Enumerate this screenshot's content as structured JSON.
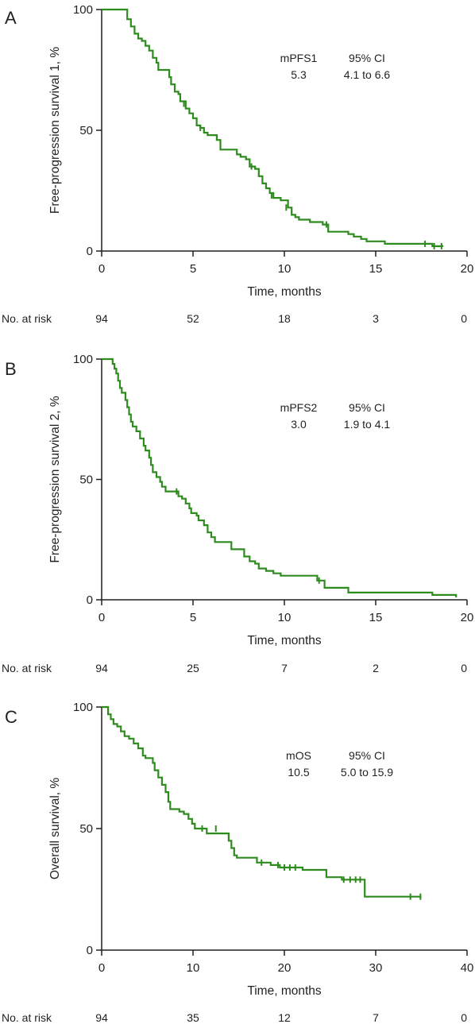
{
  "chart_data": [
    {
      "type": "line",
      "panel": "A",
      "xlabel": "Time, months",
      "ylabel": "Free-progression survival 1, %",
      "xlim": [
        0,
        20
      ],
      "ylim": [
        0,
        100
      ],
      "xticks": [
        0,
        5,
        10,
        15,
        20
      ],
      "yticks": [
        0,
        50,
        100
      ],
      "line_color": "#2e8b1e",
      "annotation": {
        "rows": [
          [
            "mPFS1",
            "95% CI"
          ],
          [
            "5.3",
            "4.1 to 6.6"
          ]
        ]
      },
      "risk_table": {
        "label": "No. at risk",
        "times": [
          0,
          5,
          10,
          15,
          20
        ],
        "counts": [
          "94",
          "52",
          "18",
          "3",
          "0"
        ]
      },
      "series": [
        {
          "steps": [
            [
              0,
              100
            ],
            [
              1.2,
              100
            ],
            [
              1.4,
              96
            ],
            [
              1.6,
              93
            ],
            [
              1.8,
              90
            ],
            [
              2.0,
              88
            ],
            [
              2.2,
              87
            ],
            [
              2.4,
              85
            ],
            [
              2.6,
              83
            ],
            [
              2.8,
              80
            ],
            [
              3.0,
              78
            ],
            [
              3.1,
              75
            ],
            [
              3.5,
              75
            ],
            [
              3.7,
              72
            ],
            [
              3.8,
              69
            ],
            [
              4.0,
              66
            ],
            [
              4.2,
              65
            ],
            [
              4.3,
              62
            ],
            [
              4.6,
              59
            ],
            [
              4.8,
              57
            ],
            [
              5.0,
              55
            ],
            [
              5.2,
              52
            ],
            [
              5.4,
              51
            ],
            [
              5.6,
              49
            ],
            [
              5.8,
              48
            ],
            [
              6.3,
              46
            ],
            [
              6.5,
              42
            ],
            [
              7.2,
              42
            ],
            [
              7.4,
              40
            ],
            [
              7.6,
              39
            ],
            [
              7.9,
              38
            ],
            [
              8.1,
              35
            ],
            [
              8.4,
              34
            ],
            [
              8.6,
              31
            ],
            [
              8.8,
              28
            ],
            [
              9.0,
              26
            ],
            [
              9.2,
              24
            ],
            [
              9.4,
              22
            ],
            [
              9.8,
              21
            ],
            [
              10.2,
              18
            ],
            [
              10.4,
              15
            ],
            [
              10.6,
              14
            ],
            [
              10.8,
              13
            ],
            [
              11.4,
              12
            ],
            [
              12.1,
              11
            ],
            [
              12.4,
              8
            ],
            [
              13.5,
              7
            ],
            [
              13.8,
              6
            ],
            [
              14.2,
              5
            ],
            [
              14.5,
              4
            ],
            [
              15.5,
              3
            ],
            [
              17.8,
              3
            ],
            [
              18.1,
              2
            ],
            [
              18.7,
              2
            ]
          ],
          "censor": [
            [
              4.5,
              61
            ],
            [
              5.4,
              51
            ],
            [
              8.2,
              35
            ],
            [
              9.3,
              23
            ],
            [
              10.1,
              18
            ],
            [
              12.3,
              11
            ],
            [
              17.7,
              3
            ],
            [
              18.2,
              2
            ],
            [
              18.6,
              2
            ]
          ]
        }
      ]
    },
    {
      "type": "line",
      "panel": "B",
      "xlabel": "Time, months",
      "ylabel": "Free-progression survival 2, %",
      "xlim": [
        0,
        20
      ],
      "ylim": [
        0,
        100
      ],
      "xticks": [
        0,
        5,
        10,
        15,
        20
      ],
      "yticks": [
        0,
        50,
        100
      ],
      "line_color": "#2e8b1e",
      "annotation": {
        "rows": [
          [
            "mPFS2",
            "95% CI"
          ],
          [
            "3.0",
            "1.9 to 4.1"
          ]
        ]
      },
      "risk_table": {
        "label": "No. at risk",
        "times": [
          0,
          5,
          10,
          15,
          20
        ],
        "counts": [
          "94",
          "25",
          "7",
          "2",
          "0"
        ]
      },
      "series": [
        {
          "steps": [
            [
              0,
              100
            ],
            [
              0.5,
              100
            ],
            [
              0.6,
              98
            ],
            [
              0.7,
              96
            ],
            [
              0.8,
              94
            ],
            [
              0.9,
              91
            ],
            [
              1.0,
              88
            ],
            [
              1.1,
              86
            ],
            [
              1.3,
              83
            ],
            [
              1.4,
              80
            ],
            [
              1.5,
              77
            ],
            [
              1.6,
              74
            ],
            [
              1.7,
              72
            ],
            [
              1.9,
              70
            ],
            [
              2.1,
              67
            ],
            [
              2.3,
              64
            ],
            [
              2.4,
              62
            ],
            [
              2.6,
              59
            ],
            [
              2.7,
              56
            ],
            [
              2.8,
              53
            ],
            [
              3.0,
              51
            ],
            [
              3.2,
              49
            ],
            [
              3.3,
              47
            ],
            [
              3.5,
              45
            ],
            [
              4.0,
              45
            ],
            [
              4.2,
              43
            ],
            [
              4.4,
              42
            ],
            [
              4.6,
              40
            ],
            [
              4.8,
              38
            ],
            [
              4.9,
              36
            ],
            [
              5.2,
              35
            ],
            [
              5.3,
              33
            ],
            [
              5.6,
              31
            ],
            [
              5.8,
              28
            ],
            [
              6.0,
              26
            ],
            [
              6.2,
              24
            ],
            [
              6.9,
              24
            ],
            [
              7.1,
              21
            ],
            [
              7.7,
              21
            ],
            [
              7.8,
              18
            ],
            [
              8.1,
              16
            ],
            [
              8.4,
              15
            ],
            [
              8.6,
              13
            ],
            [
              9.0,
              12
            ],
            [
              9.4,
              11
            ],
            [
              9.8,
              10
            ],
            [
              11.5,
              10
            ],
            [
              11.8,
              8
            ],
            [
              12.1,
              8
            ],
            [
              12.2,
              5
            ],
            [
              13.3,
              5
            ],
            [
              13.5,
              3
            ],
            [
              18.0,
              3
            ],
            [
              18.1,
              2
            ],
            [
              19.3,
              2
            ],
            [
              19.4,
              1
            ]
          ],
          "censor": [
            [
              4.1,
              45
            ],
            [
              11.9,
              8
            ]
          ]
        }
      ]
    },
    {
      "type": "line",
      "panel": "C",
      "xlabel": "Time, months",
      "ylabel": "Overall survival, %",
      "xlim": [
        0,
        40
      ],
      "ylim": [
        0,
        100
      ],
      "xticks": [
        0,
        10,
        20,
        30,
        40
      ],
      "yticks": [
        0,
        50,
        100
      ],
      "line_color": "#2e8b1e",
      "annotation": {
        "rows": [
          [
            "mOS",
            "95% CI"
          ],
          [
            "10.5",
            "5.0 to 15.9"
          ]
        ]
      },
      "risk_table": {
        "label": "No. at risk",
        "times": [
          0,
          10,
          20,
          30,
          40
        ],
        "counts": [
          "94",
          "35",
          "12",
          "7",
          "0"
        ]
      },
      "series": [
        {
          "steps": [
            [
              0,
              100
            ],
            [
              0.5,
              100
            ],
            [
              0.7,
              97
            ],
            [
              1.0,
              95
            ],
            [
              1.3,
              93
            ],
            [
              1.7,
              92
            ],
            [
              2.1,
              90
            ],
            [
              2.5,
              88
            ],
            [
              3.0,
              87
            ],
            [
              3.5,
              85
            ],
            [
              4.0,
              83
            ],
            [
              4.5,
              80
            ],
            [
              4.8,
              79
            ],
            [
              5.6,
              77
            ],
            [
              5.8,
              74
            ],
            [
              6.2,
              71
            ],
            [
              6.6,
              68
            ],
            [
              7.0,
              65
            ],
            [
              7.3,
              61
            ],
            [
              7.5,
              58
            ],
            [
              8.5,
              57
            ],
            [
              9.0,
              56
            ],
            [
              9.5,
              54
            ],
            [
              9.9,
              52
            ],
            [
              10.2,
              50
            ],
            [
              11.3,
              50
            ],
            [
              11.5,
              48
            ],
            [
              13.5,
              48
            ],
            [
              13.9,
              45
            ],
            [
              14.2,
              42
            ],
            [
              14.5,
              39
            ],
            [
              14.8,
              38
            ],
            [
              16.8,
              38
            ],
            [
              17.0,
              36
            ],
            [
              18.0,
              36
            ],
            [
              18.5,
              35
            ],
            [
              19.5,
              34
            ],
            [
              21.7,
              34
            ],
            [
              22.0,
              33
            ],
            [
              24.3,
              33
            ],
            [
              24.6,
              30
            ],
            [
              26.0,
              30
            ],
            [
              26.3,
              29
            ],
            [
              28.6,
              29
            ],
            [
              28.8,
              22
            ],
            [
              35.0,
              22
            ]
          ],
          "censor": [
            [
              11.0,
              50
            ],
            [
              12.5,
              50
            ],
            [
              17.5,
              36
            ],
            [
              19.3,
              35
            ],
            [
              20.0,
              34
            ],
            [
              20.6,
              34
            ],
            [
              21.2,
              34
            ],
            [
              26.5,
              29
            ],
            [
              27.2,
              29
            ],
            [
              27.8,
              29
            ],
            [
              28.3,
              29
            ],
            [
              33.8,
              22
            ],
            [
              34.9,
              22
            ]
          ]
        }
      ]
    }
  ]
}
